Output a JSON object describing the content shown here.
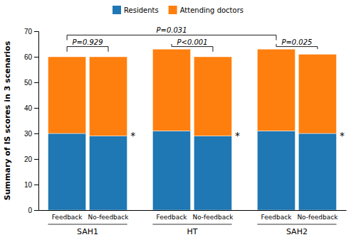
{
  "chart_data": {
    "type": "bar",
    "stacked": true,
    "categories": [
      "Feedback",
      "No-feedback",
      "Feedback",
      "No-feedback",
      "Feedback",
      "No-feedback"
    ],
    "groups": [
      "SAH1",
      "HT",
      "SAH2"
    ],
    "ylabel": "Summary of IS scores in 3 scenarios",
    "series": [
      {
        "name": "Residents",
        "values": [
          30,
          29,
          31,
          29,
          31,
          30
        ]
      },
      {
        "name": "Attending doctors",
        "values": [
          30,
          31,
          32,
          31,
          32,
          31
        ]
      }
    ],
    "ylim": [
      0,
      70
    ],
    "yticks": [
      0,
      10,
      20,
      30,
      40,
      50,
      60,
      70
    ],
    "grid": false,
    "legend": "top",
    "annotations": [
      {
        "text": "P=0.929",
        "between": [
          0,
          1
        ],
        "y": 64.0,
        "y_ends": [
          62.0,
          62.0
        ]
      },
      {
        "text": "P=0.031",
        "between": [
          0,
          4
        ],
        "y": 68.5,
        "y_ends": [
          66.5,
          66.5
        ]
      },
      {
        "text": "P<0.001",
        "between": [
          2,
          3
        ],
        "y": 64.0,
        "y_ends": [
          65.0,
          62.0
        ]
      },
      {
        "text": "P=0.025",
        "between": [
          4,
          5
        ],
        "y": 64.0,
        "y_ends": [
          65.0,
          63.0
        ]
      },
      {
        "text": "*",
        "category": 1,
        "y": 29
      },
      {
        "text": "*",
        "category": 3,
        "y": 29
      },
      {
        "text": "*",
        "category": 5,
        "y": 29
      }
    ]
  }
}
